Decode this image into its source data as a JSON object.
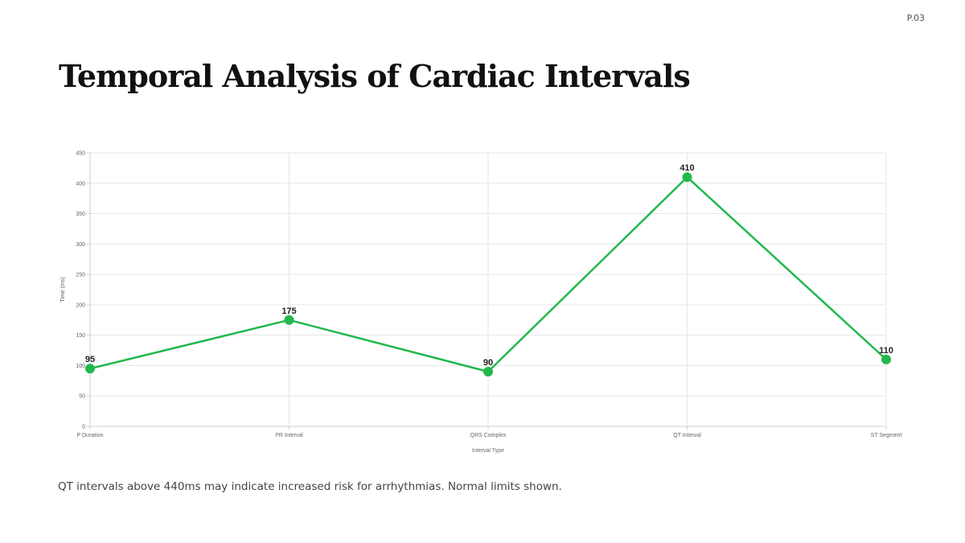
{
  "page": {
    "number": "P.03"
  },
  "title": "Temporal Analysis of Cardiac Intervals",
  "caption": "QT intervals above 440ms may indicate increased risk for arrhythmias. Normal limits shown.",
  "chart_data": {
    "type": "line",
    "title": "Temporal Analysis of Cardiac Intervals",
    "xlabel": "Interval Type",
    "ylabel": "Time (ms)",
    "categories": [
      "P Duration",
      "PR Interval",
      "QRS Complex",
      "QT Interval",
      "ST Segment"
    ],
    "series": [
      {
        "values": [
          95,
          175,
          90,
          410,
          110
        ],
        "color": "#22b84c"
      }
    ],
    "ylim": [
      0,
      450
    ],
    "yticks": [
      0,
      50,
      100,
      150,
      200,
      250,
      300,
      350,
      400,
      450
    ],
    "grid": true,
    "data_labels": true
  }
}
